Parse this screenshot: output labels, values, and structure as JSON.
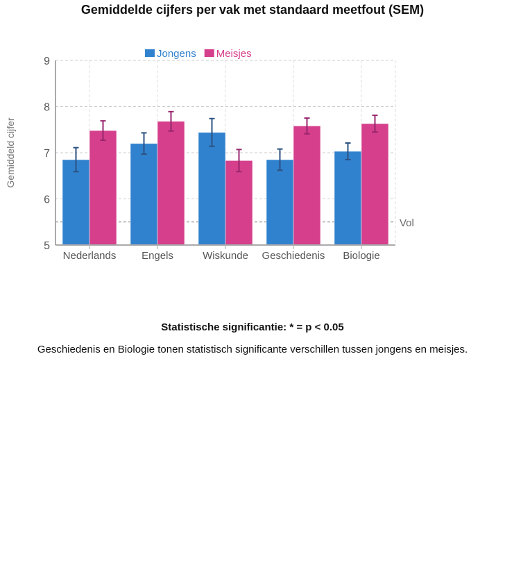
{
  "chart_data": {
    "type": "bar",
    "title": "Gemiddelde cijfers per vak met standaard meetfout (SEM)",
    "ylabel": "Gemiddeld cijfer",
    "xlabel": "",
    "ylim": [
      5,
      9
    ],
    "yticks": [
      5,
      6,
      7,
      8,
      9
    ],
    "grid": true,
    "legend": "top",
    "categories": [
      "Nederlands",
      "Engels",
      "Wiskunde",
      "Geschiedenis",
      "Biologie"
    ],
    "series": [
      {
        "name": "Jongens",
        "color": "#3182ce",
        "values": [
          6.85,
          7.2,
          7.44,
          6.85,
          7.03
        ],
        "sem": [
          0.26,
          0.23,
          0.3,
          0.23,
          0.18
        ]
      },
      {
        "name": "Meisjes",
        "color": "#d53f8c",
        "values": [
          7.48,
          7.68,
          6.83,
          7.58,
          7.63
        ],
        "sem": [
          0.21,
          0.21,
          0.24,
          0.17,
          0.18
        ]
      }
    ],
    "reference_line": {
      "value": 5.5,
      "label": "Vol"
    }
  },
  "significance_title": "Statistische significantie: * = p < 0.05",
  "significance_note": "Geschiedenis en Biologie tonen statistisch significante verschillen tussen jongens en meisjes."
}
